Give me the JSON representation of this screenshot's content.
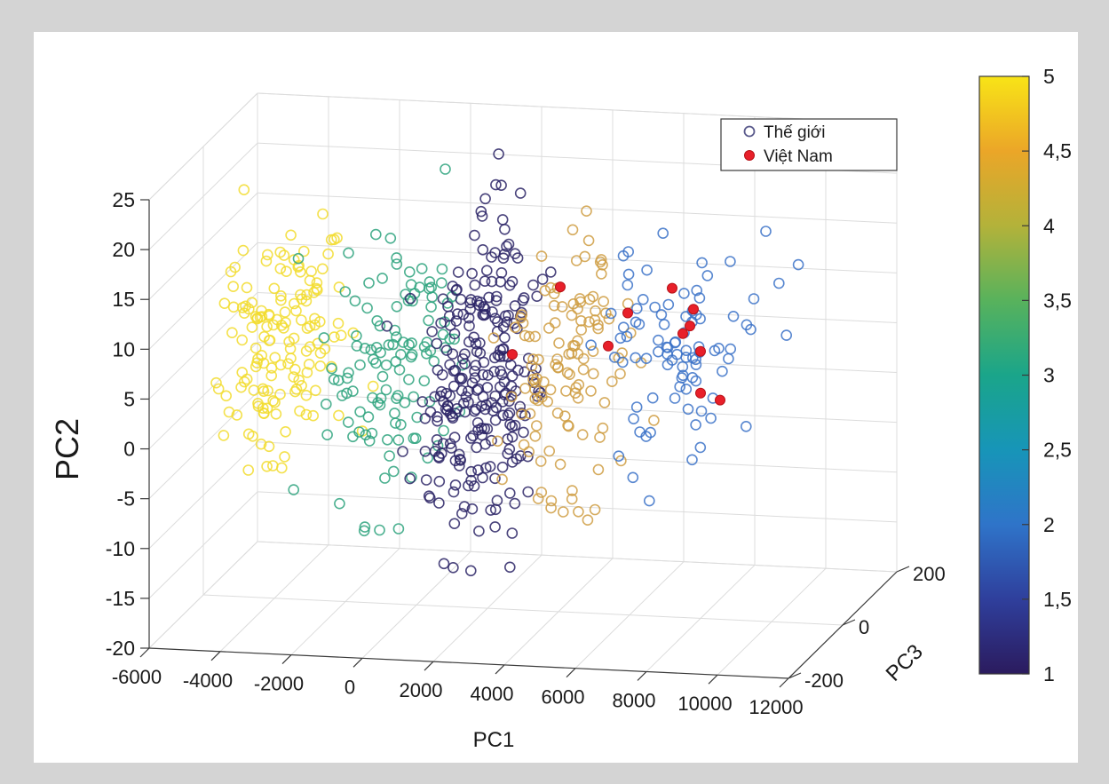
{
  "chart_data": {
    "type": "scatter",
    "dimensions": 3,
    "xlabel": "PC1",
    "ylabel": "PC2",
    "zlabel": "PC3",
    "xlim": [
      -6000,
      12000
    ],
    "ylim": [
      -20,
      25
    ],
    "zlim": [
      -200,
      200
    ],
    "x_ticks": [
      -6000,
      -4000,
      -2000,
      0,
      2000,
      4000,
      6000,
      8000,
      10000,
      12000
    ],
    "x_tick_labels": [
      "-6000",
      "-4000",
      "-2000",
      "0",
      "2000",
      "4000",
      "6000",
      "8000",
      "10000",
      "12000"
    ],
    "y_ticks": [
      25,
      20,
      15,
      10,
      5,
      0,
      -5,
      -10,
      -15,
      -20
    ],
    "y_tick_labels": [
      "25",
      "20",
      "15",
      "10",
      "5",
      "0",
      "-5",
      "-10",
      "-15",
      "-20"
    ],
    "z_ticks": [
      200,
      0,
      -200
    ],
    "z_tick_labels": [
      "200",
      "0",
      "-200"
    ],
    "grid": true,
    "legend": {
      "position": "top-right",
      "entries": [
        {
          "label": "Thế giới",
          "marker": "open-circle",
          "color": "#5a5a8c"
        },
        {
          "label": "Việt Nam",
          "marker": "filled-circle",
          "color": "#e8202a"
        }
      ]
    },
    "colorbar": {
      "min": 1,
      "max": 5,
      "ticks": [
        5,
        4.5,
        4,
        3.5,
        3,
        2.5,
        2,
        1.5,
        1
      ],
      "tick_labels": [
        "5",
        "4,5",
        "4",
        "3,5",
        "3",
        "2,5",
        "2",
        "1,5",
        "1"
      ],
      "colors": [
        "#2b1b5e",
        "#2f3f9c",
        "#2f74c9",
        "#1795b8",
        "#1aa58a",
        "#58b25c",
        "#b3b23a",
        "#eba628",
        "#f8e417"
      ]
    },
    "clusters": [
      {
        "name": "5",
        "color_value": 5,
        "color": "#f2dc2e",
        "count": 150,
        "x_range": [
          -5200,
          -1700
        ],
        "x_mean": -3800,
        "y_range": [
          -6,
          23
        ],
        "y_mean": 6
      },
      {
        "name": "3",
        "color_value": 3,
        "color": "#2ea37e",
        "count": 120,
        "x_range": [
          -2600,
          1000
        ],
        "x_mean": -700,
        "y_range": [
          -11,
          21
        ],
        "y_mean": 4
      },
      {
        "name": "1",
        "color_value": 1,
        "color": "#2b2466",
        "count": 260,
        "x_range": [
          0,
          3200
        ],
        "x_mean": 1700,
        "y_range": [
          -15,
          24
        ],
        "y_mean": 3
      },
      {
        "name": "4",
        "color_value": 4,
        "color": "#cf9e43",
        "count": 120,
        "x_range": [
          2400,
          6100
        ],
        "x_mean": 4200,
        "y_range": [
          -9,
          21
        ],
        "y_mean": 5
      },
      {
        "name": "2",
        "color_value": 2,
        "color": "#3b72c8",
        "count": 90,
        "x_range": [
          5800,
          11500
        ],
        "x_mean": 7400,
        "y_range": [
          -6,
          21
        ],
        "y_mean": 7
      }
    ],
    "highlighted_points": {
      "series": "Việt Nam",
      "color": "#e8202a",
      "points": [
        {
          "x": 4050,
          "y": 12.6,
          "z": 0
        },
        {
          "x": 5950,
          "y": 10.3,
          "z": 0
        },
        {
          "x": 7200,
          "y": 13.0,
          "z": 0
        },
        {
          "x": 7800,
          "y": 11.0,
          "z": 0
        },
        {
          "x": 7700,
          "y": 9.3,
          "z": 0
        },
        {
          "x": 7500,
          "y": 8.5,
          "z": 0
        },
        {
          "x": 8000,
          "y": 6.8,
          "z": 0
        },
        {
          "x": 5400,
          "y": 6.9,
          "z": 0
        },
        {
          "x": 2700,
          "y": 5.6,
          "z": 0
        },
        {
          "x": 8000,
          "y": 2.6,
          "z": 0
        },
        {
          "x": 8550,
          "y": 2.0,
          "z": 0
        }
      ]
    }
  }
}
